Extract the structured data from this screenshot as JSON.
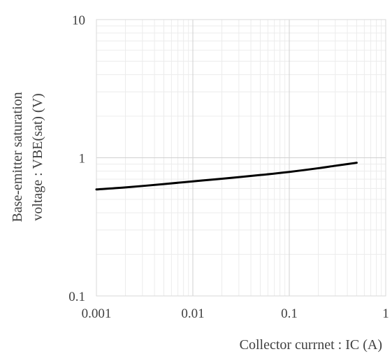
{
  "chart_data": {
    "type": "line",
    "title": "",
    "xlabel": "Collector currnet : IC (A)",
    "ylabel_lines": [
      "Base-emitter saturation",
      "voltage : VBE(sat) (V)"
    ],
    "x_scale": "log",
    "y_scale": "log",
    "xlim": [
      0.001,
      1
    ],
    "ylim": [
      0.1,
      10
    ],
    "x_ticks": [
      0.001,
      0.01,
      0.1,
      1
    ],
    "x_tick_labels": [
      "0.001",
      "0.01",
      "0.1",
      "1"
    ],
    "y_ticks": [
      0.1,
      1,
      10
    ],
    "y_tick_labels": [
      "0.1",
      "1",
      "10"
    ],
    "grid": true,
    "minor_grid": true,
    "legend": "none",
    "series": [
      {
        "color": "#000000",
        "x": [
          0.001,
          0.002,
          0.005,
          0.01,
          0.02,
          0.05,
          0.1,
          0.2,
          0.3,
          0.5
        ],
        "y": [
          0.59,
          0.61,
          0.645,
          0.675,
          0.705,
          0.75,
          0.79,
          0.84,
          0.875,
          0.92
        ]
      }
    ]
  }
}
